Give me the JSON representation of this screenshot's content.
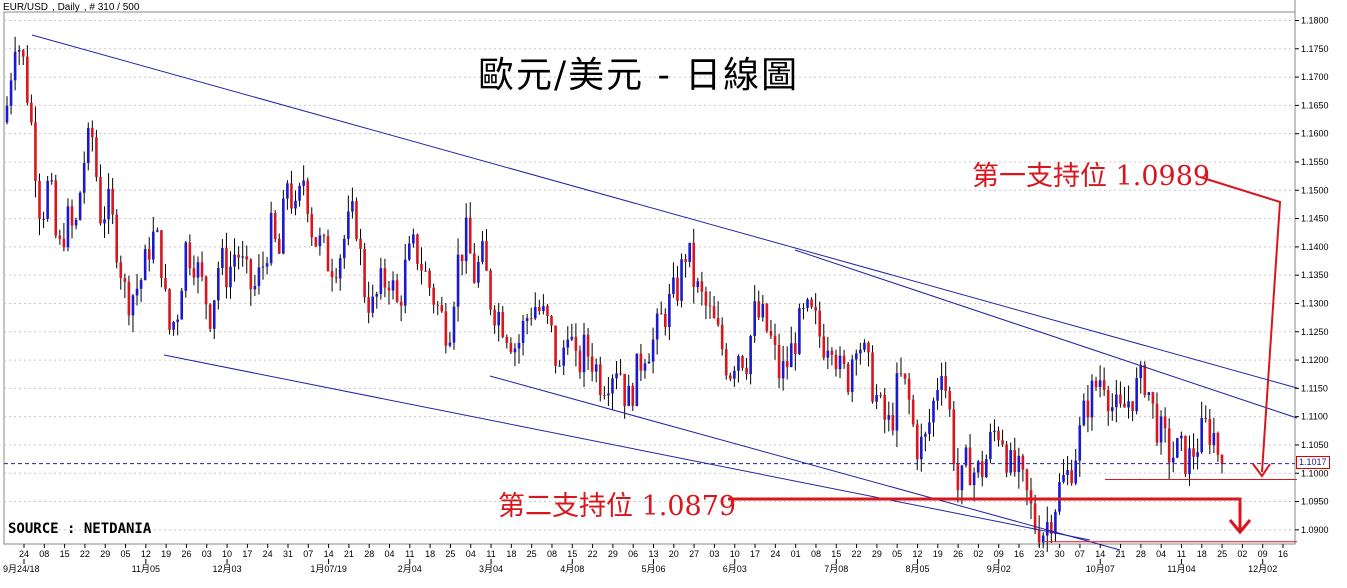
{
  "header": {
    "symbol": "EUR/USD",
    "interval": "Daily",
    "bars_info": "# 310 / 500"
  },
  "title": "歐元/美元 - 日線圖",
  "source": "SOURCE : NETDANIA",
  "annotations": {
    "support1": "第一支持位 1.0989",
    "support2": "第二支持位 1.0879"
  },
  "last_price": "1.1017",
  "colors": {
    "up": "#1a1acc",
    "down": "#d8161e",
    "trendline": "#2222aa",
    "annotation": "#d8161e",
    "grid": "#c8c8c8"
  },
  "chart_data": {
    "type": "candlestick",
    "ylim": [
      1.0875,
      1.1815
    ],
    "yticks": [
      1.09,
      1.095,
      1.1,
      1.105,
      1.11,
      1.115,
      1.12,
      1.125,
      1.13,
      1.135,
      1.14,
      1.145,
      1.15,
      1.155,
      1.16,
      1.165,
      1.17,
      1.175,
      1.18
    ],
    "ytick_labels": [
      "1.0900",
      "1.0950",
      "1.1000",
      "1.1050",
      "1.1100",
      "1.1150",
      "1.1200",
      "1.1250",
      "1.1300",
      "1.1350",
      "1.1400",
      "1.1450",
      "1.1500",
      "1.1550",
      "1.1600",
      "1.1650",
      "1.1700",
      "1.1750",
      "1.1800"
    ],
    "x_day_labels": [
      "24",
      "08",
      "15",
      "22",
      "29",
      "05",
      "12",
      "19",
      "26",
      "03",
      "10",
      "17",
      "24",
      "31",
      "07",
      "14",
      "21",
      "28",
      "04",
      "11",
      "18",
      "25",
      "04",
      "11",
      "18",
      "25",
      "08",
      "15",
      "22",
      "29",
      "06",
      "13",
      "20",
      "27",
      "03",
      "10",
      "17",
      "24",
      "01",
      "08",
      "15",
      "22",
      "29",
      "05",
      "12",
      "19",
      "26",
      "02",
      "09",
      "16",
      "23",
      "30",
      "07",
      "14",
      "21",
      "28",
      "04",
      "11",
      "18",
      "25",
      "02",
      "09",
      "16"
    ],
    "x_month_labels": [
      "9月24/18",
      "11月05",
      "12月03",
      "1月07/19",
      "2月04",
      "3月04",
      "4月08",
      "5月06",
      "6月03",
      "7月08",
      "8月05",
      "9月02",
      "10月07",
      "11月04",
      "12月02"
    ],
    "levels": {
      "support1": 1.0989,
      "support2": 1.0879,
      "last": 1.1017
    },
    "close_path": [
      1.165,
      1.178,
      1.172,
      1.16,
      1.145,
      1.152,
      1.138,
      1.145,
      1.142,
      1.155,
      1.16,
      1.146,
      1.147,
      1.14,
      1.131,
      1.132,
      1.135,
      1.142,
      1.14,
      1.125,
      1.128,
      1.14,
      1.138,
      1.133,
      1.128,
      1.138,
      1.135,
      1.14,
      1.135,
      1.132,
      1.136,
      1.143,
      1.138,
      1.152,
      1.145,
      1.153,
      1.142,
      1.14,
      1.137,
      1.138,
      1.143,
      1.146,
      1.133,
      1.129,
      1.133,
      1.135,
      1.129,
      1.137,
      1.14,
      1.136,
      1.132,
      1.128,
      1.125,
      1.137,
      1.142,
      1.135,
      1.138,
      1.13,
      1.128,
      1.125,
      1.122,
      1.127,
      1.13,
      1.128,
      1.125,
      1.117,
      1.127,
      1.118,
      1.122,
      1.12,
      1.116,
      1.118,
      1.12,
      1.112,
      1.117,
      1.122,
      1.123,
      1.127,
      1.13,
      1.133,
      1.14,
      1.133,
      1.13,
      1.127,
      1.123,
      1.118,
      1.122,
      1.12,
      1.128,
      1.127,
      1.123,
      1.117,
      1.12,
      1.125,
      1.128,
      1.127,
      1.123,
      1.125,
      1.118,
      1.117,
      1.125,
      1.12,
      1.115,
      1.11,
      1.108,
      1.117,
      1.114,
      1.105,
      1.105,
      1.112,
      1.12,
      1.11,
      1.096,
      1.102,
      1.1,
      1.101,
      1.107,
      1.108,
      1.101,
      1.1,
      1.096,
      1.091,
      1.09,
      1.093,
      1.098,
      1.1,
      1.105,
      1.112,
      1.115,
      1.118,
      1.112,
      1.11,
      1.113,
      1.115,
      1.117,
      1.11,
      1.106,
      1.103,
      1.104,
      1.102,
      1.105,
      1.108,
      1.107,
      1.1017
    ]
  }
}
